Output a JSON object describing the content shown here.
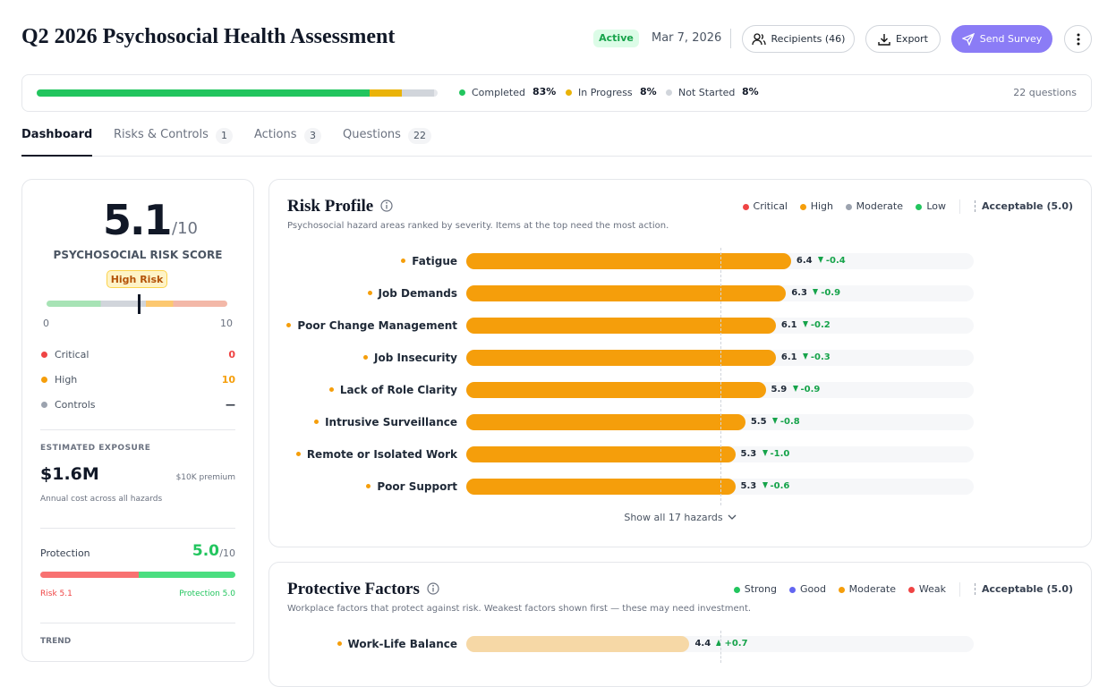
{
  "header": {
    "title": "Q2 2026 Psychosocial Health Assessment",
    "status": "Active",
    "date": "Mar 7, 2026",
    "buttons": [
      "Recipients (46)",
      "Export",
      "Send Survey"
    ]
  },
  "progress": {
    "segments": [
      {
        "label": "Completed",
        "value": 83,
        "value_label": "83%",
        "color": "#22c55e"
      },
      {
        "label": "In Progress",
        "value": 8,
        "value_label": "8%",
        "color": "#eab308"
      },
      {
        "label": "Not Started",
        "value": 8,
        "value_label": "8%",
        "color": "#d1d5db"
      }
    ],
    "questions": "22 questions"
  },
  "tabs": [
    {
      "label": "Dashboard",
      "count": null,
      "active": true
    },
    {
      "label": "Risks & Controls",
      "count": 1
    },
    {
      "label": "Actions",
      "count": 3
    },
    {
      "label": "Questions",
      "count": 22
    }
  ],
  "score_card": {
    "score": 5.1,
    "suffix": "/10",
    "label": "PSYCHOSOCIAL RISK SCORE",
    "badge": "High Risk",
    "scale": [
      0,
      10
    ],
    "counts": [
      {
        "label": "Critical",
        "value": 0,
        "color": "#ef4444"
      },
      {
        "label": "High",
        "value": 10,
        "color": "#f59e0b"
      },
      {
        "label": "Controls",
        "value": "—",
        "color": "#9ca3af"
      }
    ],
    "exposure": {
      "heading": "ESTIMATED EXPOSURE",
      "amount": "$1.6M",
      "premium": "$10K premium",
      "note": "Annual cost across all hazards"
    },
    "protection": {
      "label": "Protection",
      "score": {
        "value": 5,
        "label": "5.0"
      },
      "suffix": "/10",
      "risk_label": "Risk 5.1",
      "protection_label": "Protection 5.0"
    },
    "trend": "TREND"
  },
  "risk_profile": {
    "title": "Risk Profile",
    "subtitle": "Psychosocial hazard areas ranked by severity. Items at the top need the most action.",
    "legend": [
      {
        "label": "Critical",
        "color": "#ef4444"
      },
      {
        "label": "High",
        "color": "#f59e0b"
      },
      {
        "label": "Moderate",
        "color": "#9ca3af"
      },
      {
        "label": "Low",
        "color": "#22c55e"
      }
    ],
    "threshold": {
      "label": "Acceptable (5.0)",
      "value": 5
    },
    "items": [
      {
        "name": "Fatigue",
        "value": 6.4,
        "delta": -0.4,
        "color": "#f59e0b"
      },
      {
        "name": "Job Demands",
        "value": 6.3,
        "delta": -0.9,
        "color": "#f59e0b"
      },
      {
        "name": "Poor Change Management",
        "value": 6.1,
        "delta": -0.2,
        "color": "#f59e0b"
      },
      {
        "name": "Job Insecurity",
        "value": 6.1,
        "delta": -0.3,
        "color": "#f59e0b"
      },
      {
        "name": "Lack of Role Clarity",
        "value": 5.9,
        "delta": -0.9,
        "color": "#f59e0b"
      },
      {
        "name": "Intrusive Surveillance",
        "value": 5.5,
        "delta": -0.8,
        "color": "#f59e0b"
      },
      {
        "name": "Remote or Isolated Work",
        "value": 5.3,
        "delta": {
          "value": -1,
          "label": "-1.0"
        },
        "color": "#f59e0b"
      },
      {
        "name": "Poor Support",
        "value": 5.3,
        "delta": -0.6,
        "color": "#f59e0b"
      }
    ],
    "show_all": "Show all 17 hazards"
  },
  "protective_factors": {
    "title": "Protective Factors",
    "subtitle": "Workplace factors that protect against risk. Weakest factors shown first — these may need investment.",
    "legend": [
      {
        "label": "Strong",
        "color": "#22c55e"
      },
      {
        "label": "Good",
        "color": "#6366f1"
      },
      {
        "label": "Moderate",
        "color": "#f59e0b"
      },
      {
        "label": "Weak",
        "color": "#ef4444"
      }
    ],
    "threshold": {
      "label": "Acceptable (5.0)",
      "value": 5
    },
    "items": [
      {
        "name": "Work-Life Balance",
        "value": 4.4,
        "delta": {
          "value": 0.7,
          "label": "+0.7"
        },
        "color": "#f59e0b"
      }
    ]
  }
}
